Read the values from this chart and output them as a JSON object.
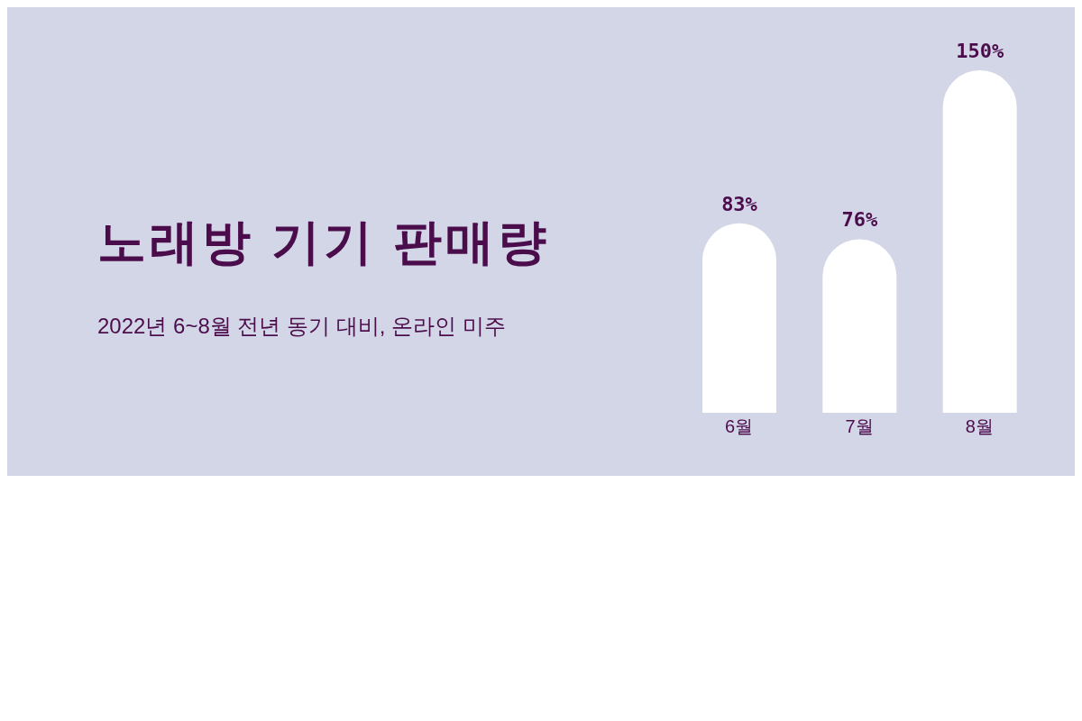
{
  "chart_data": {
    "type": "bar",
    "title": "노래방 기기 판매량",
    "subtitle": "2022년 6~8월 전년 동기 대비, 온라인 미주",
    "categories": [
      "6월",
      "7월",
      "8월"
    ],
    "values": [
      83,
      76,
      150
    ],
    "value_labels": [
      "83%",
      "76%",
      "150%"
    ],
    "color": "#ffffff"
  }
}
